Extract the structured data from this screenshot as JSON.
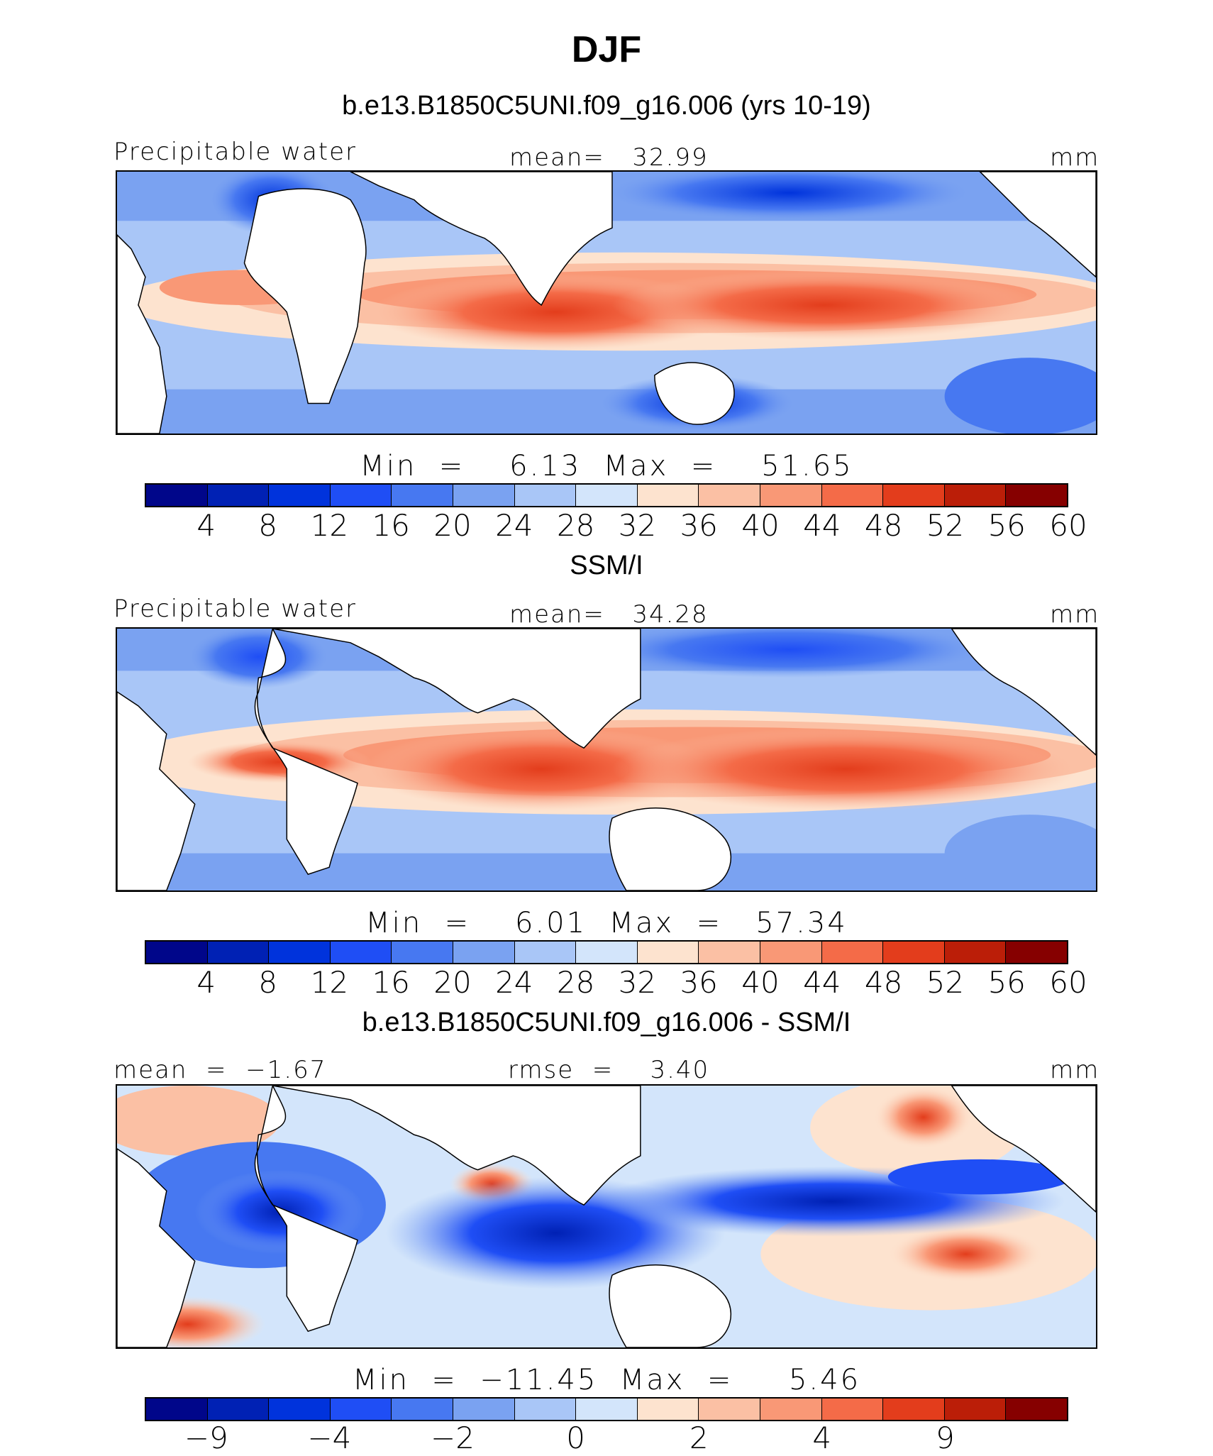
{
  "title": "DJF",
  "panels": [
    {
      "title": "b.e13.B1850C5UNI.f09_g16.006 (yrs 10-19)",
      "left_label": "Precipitable water",
      "center_label": "mean=   32.99",
      "right_label": "mm",
      "minmax": "Min  =    6.13  Max  =    51.65",
      "colorbar_ticks": [
        "4",
        "8",
        "12",
        "16",
        "20",
        "24",
        "28",
        "32",
        "36",
        "40",
        "44",
        "48",
        "52",
        "56",
        "60"
      ]
    },
    {
      "title": "SSM/I",
      "left_label": "Precipitable water",
      "center_label": "mean=   34.28",
      "right_label": "mm",
      "minmax": "Min  =    6.01  Max  =   57.34",
      "colorbar_ticks": [
        "4",
        "8",
        "12",
        "16",
        "20",
        "24",
        "28",
        "32",
        "36",
        "40",
        "44",
        "48",
        "52",
        "56",
        "60"
      ]
    },
    {
      "title": "b.e13.B1850C5UNI.f09_g16.006 - SSM/I",
      "left_label": "mean  =  −1.67",
      "center_label": "rmse  =    3.40",
      "right_label": "mm",
      "minmax": "Min  =  −11.45  Max  =     5.46",
      "colorbar_ticks": [
        "−9",
        "−4",
        "−2",
        "0",
        "2",
        "4",
        "9"
      ]
    }
  ],
  "colorbar_colors": [
    "#00068a",
    "#0021b4",
    "#0033dc",
    "#1f4ef5",
    "#4778f1",
    "#7aa2f1",
    "#a9c6f7",
    "#d3e5fb",
    "#fde3cf",
    "#fbc0a4",
    "#f99876",
    "#f46b48",
    "#e33d1c",
    "#bb1e08",
    "#860000"
  ],
  "accent_colors": {
    "positive": "#e84a25",
    "negative": "#1f4ef5",
    "land": "#ffffff"
  }
}
